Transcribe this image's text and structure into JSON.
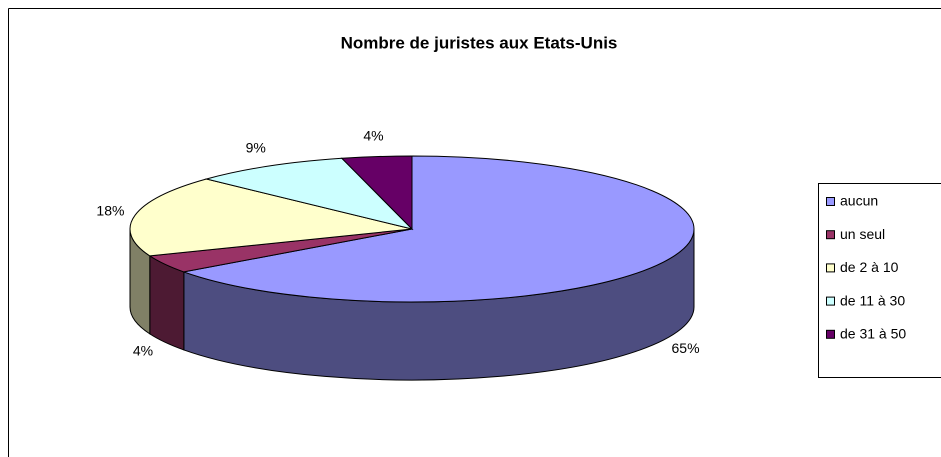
{
  "chart_data": {
    "type": "pie",
    "title": "Nombre de juristes aux Etats-Unis",
    "categories": [
      "aucun",
      "un seul",
      "de 2 à 10",
      "de 11 à 30",
      "de 31 à 50"
    ],
    "values": [
      65,
      4,
      18,
      9,
      4
    ],
    "value_labels": [
      "65%",
      "4%",
      "18%",
      "9%",
      "4%"
    ],
    "colors": [
      "#9999ff",
      "#993366",
      "#ffffcc",
      "#ccffff",
      "#660066"
    ],
    "legend": "right"
  }
}
